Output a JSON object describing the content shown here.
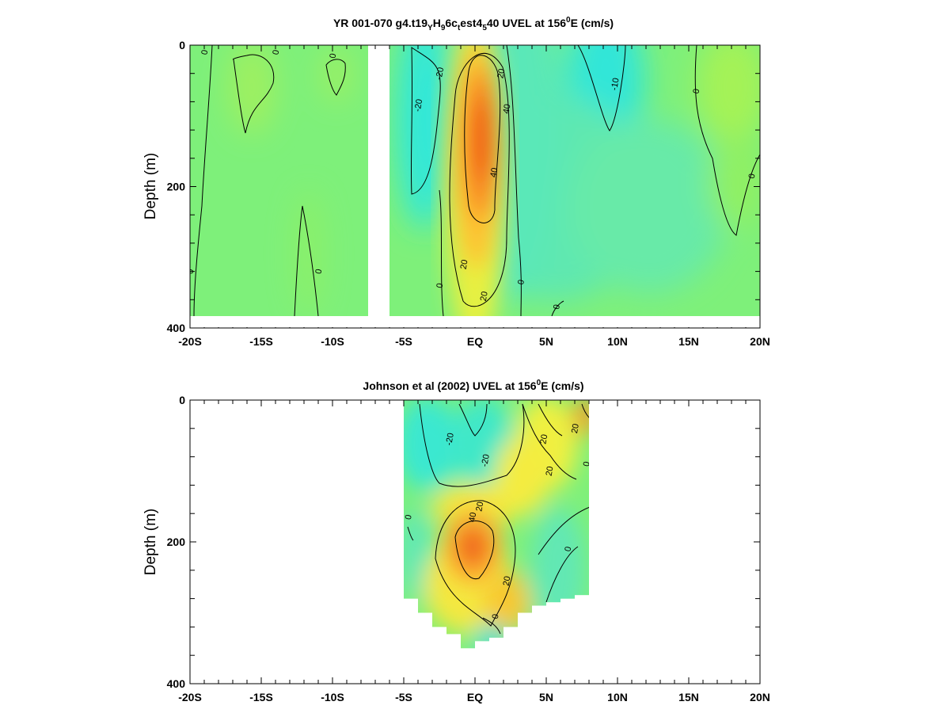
{
  "chart_data": [
    {
      "type": "heatmap",
      "title_parts": [
        "YR 001-070 g4.t19",
        "Y",
        "H",
        "9",
        "6c",
        "t",
        "est4",
        "5",
        "40 UVEL at 156",
        "0",
        "E (cm/s)"
      ],
      "ylabel": "Depth (m)",
      "xlim": [
        -20,
        20
      ],
      "ylim": [
        400,
        0
      ],
      "x_ticks": [
        -20,
        -15,
        -10,
        -5,
        0,
        5,
        10,
        15,
        20
      ],
      "x_tick_labels": [
        "-20S",
        "-15S",
        "-10S",
        "-5S",
        "EQ",
        "5N",
        "10N",
        "15N",
        "20N"
      ],
      "y_ticks": [
        0,
        200,
        400
      ],
      "y_tick_labels": [
        "0",
        "200",
        "400"
      ],
      "land_gap_lat": [
        -7.5,
        -6
      ],
      "data_depth_max": 385,
      "core": {
        "lat": 0.5,
        "depth": 180,
        "peak": 55
      },
      "contour_labels": [
        {
          "text": "0",
          "lat": -19,
          "depth": 10
        },
        {
          "text": "0",
          "lat": -14,
          "depth": 10
        },
        {
          "text": "0",
          "lat": -10,
          "depth": 15
        },
        {
          "text": "-20",
          "lat": -2.5,
          "depth": 40
        },
        {
          "text": "-20",
          "lat": -4,
          "depth": 85
        },
        {
          "text": "20",
          "lat": 1.8,
          "depth": 40
        },
        {
          "text": "40",
          "lat": 2.2,
          "depth": 90
        },
        {
          "text": "40",
          "lat": 1.3,
          "depth": 180
        },
        {
          "text": "20",
          "lat": -0.8,
          "depth": 310
        },
        {
          "text": "20",
          "lat": 0.6,
          "depth": 355
        },
        {
          "text": "0",
          "lat": -2.5,
          "depth": 340
        },
        {
          "text": "0",
          "lat": 3.2,
          "depth": 335
        },
        {
          "text": "0",
          "lat": -11,
          "depth": 320
        },
        {
          "text": "0",
          "lat": -20,
          "depth": 320
        },
        {
          "text": "-10",
          "lat": 9.8,
          "depth": 55
        },
        {
          "text": "0",
          "lat": 15.5,
          "depth": 65
        },
        {
          "text": "0",
          "lat": 19.4,
          "depth": 185
        },
        {
          "text": "0",
          "lat": 5.7,
          "depth": 370
        }
      ]
    },
    {
      "type": "heatmap",
      "title_parts": [
        "Johnson et al (2002) UVEL at 156",
        "0",
        "E (cm/s)"
      ],
      "ylabel": "Depth (m)",
      "xlim": [
        -20,
        20
      ],
      "ylim": [
        400,
        0
      ],
      "x_ticks": [
        -20,
        -15,
        -10,
        -5,
        0,
        5,
        10,
        15,
        20
      ],
      "x_tick_labels": [
        "-20S",
        "-15S",
        "-10S",
        "-5S",
        "EQ",
        "5N",
        "10N",
        "15N",
        "20N"
      ],
      "y_ticks": [
        0,
        200,
        400
      ],
      "y_tick_labels": [
        "0",
        "200",
        "400"
      ],
      "data_lat_range": [
        -5,
        8
      ],
      "bottom_profile": [
        [
          -5,
          265
        ],
        [
          -4,
          280
        ],
        [
          -3,
          300
        ],
        [
          -2,
          320
        ],
        [
          -1,
          330
        ],
        [
          0,
          350
        ],
        [
          1,
          340
        ],
        [
          2,
          335
        ],
        [
          3,
          320
        ],
        [
          4,
          300
        ],
        [
          5,
          290
        ],
        [
          6,
          285
        ],
        [
          7,
          280
        ],
        [
          8,
          275
        ]
      ],
      "core": {
        "lat": -0.3,
        "depth": 205,
        "peak": 50
      },
      "contour_labels": [
        {
          "text": "-20",
          "lat": -1.8,
          "depth": 55
        },
        {
          "text": "-20",
          "lat": 0.7,
          "depth": 85
        },
        {
          "text": "20",
          "lat": 4.8,
          "depth": 55
        },
        {
          "text": "20",
          "lat": 7.0,
          "depth": 40
        },
        {
          "text": "0",
          "lat": 7.8,
          "depth": 90
        },
        {
          "text": "20",
          "lat": 5.2,
          "depth": 100
        },
        {
          "text": "40",
          "lat": -0.2,
          "depth": 165
        },
        {
          "text": "20",
          "lat": 0.3,
          "depth": 150
        },
        {
          "text": "0",
          "lat": 6.5,
          "depth": 210
        },
        {
          "text": "20",
          "lat": 2.2,
          "depth": 255
        },
        {
          "text": "0",
          "lat": 1.4,
          "depth": 305
        },
        {
          "text": "0",
          "lat": -4.7,
          "depth": 165
        }
      ]
    }
  ]
}
